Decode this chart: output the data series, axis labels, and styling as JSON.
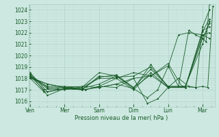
{
  "xlabel": "Pression niveau de la mer( hPa )",
  "bg_color": "#cce8e0",
  "grid_major_color": "#aaccc4",
  "grid_minor_color": "#bbddd5",
  "line_color": "#1a5c2a",
  "ylim": [
    1015.5,
    1024.5
  ],
  "yticks": [
    1016,
    1017,
    1018,
    1019,
    1020,
    1021,
    1022,
    1023,
    1024
  ],
  "xtick_labels": [
    "Ven",
    "Mer",
    "Sam",
    "Dim",
    "Lun",
    "Mar"
  ],
  "xtick_positions": [
    0.0,
    1.0,
    2.0,
    3.0,
    4.0,
    5.0
  ],
  "xlim": [
    -0.05,
    5.35
  ],
  "series": [
    {
      "x": [
        0.0,
        0.5,
        1.0,
        1.5,
        2.0,
        2.5,
        3.0,
        3.5,
        4.0,
        4.3,
        4.6,
        4.8,
        5.0,
        5.1,
        5.2
      ],
      "y": [
        1018.1,
        1017.5,
        1017.2,
        1017.3,
        1017.2,
        1017.5,
        1018.0,
        1018.2,
        1019.1,
        1017.3,
        1022.2,
        1021.8,
        1021.5,
        1021.2,
        1024.5
      ]
    },
    {
      "x": [
        0.0,
        0.4,
        0.8,
        1.2,
        1.6,
        2.0,
        2.5,
        3.0,
        3.4,
        3.7,
        4.0,
        4.3,
        4.6,
        4.8,
        5.0,
        5.15,
        5.3
      ],
      "y": [
        1018.0,
        1016.8,
        1017.0,
        1017.1,
        1017.0,
        1017.3,
        1017.2,
        1018.0,
        1015.8,
        1016.2,
        1017.2,
        1018.0,
        1017.3,
        1017.2,
        1017.3,
        1017.2,
        1024.3
      ]
    },
    {
      "x": [
        0.0,
        0.4,
        0.8,
        1.2,
        1.6,
        2.0,
        2.5,
        3.0,
        3.5,
        4.0,
        4.4,
        4.8,
        5.0,
        5.2
      ],
      "y": [
        1018.2,
        1017.0,
        1017.1,
        1017.2,
        1017.0,
        1017.3,
        1018.0,
        1018.5,
        1018.2,
        1019.3,
        1017.3,
        1017.2,
        1022.5,
        1024.0
      ]
    },
    {
      "x": [
        0.0,
        0.5,
        1.0,
        1.5,
        2.0,
        2.5,
        3.0,
        3.5,
        4.0,
        4.5,
        5.0,
        5.2
      ],
      "y": [
        1018.5,
        1016.8,
        1017.1,
        1017.0,
        1017.2,
        1017.5,
        1017.1,
        1019.2,
        1017.2,
        1017.2,
        1021.8,
        1022.0
      ]
    },
    {
      "x": [
        0.0,
        0.5,
        1.0,
        1.5,
        2.0,
        2.5,
        3.0,
        3.5,
        4.0,
        4.5,
        5.0,
        5.2
      ],
      "y": [
        1018.3,
        1017.2,
        1017.2,
        1017.1,
        1017.5,
        1018.2,
        1017.2,
        1018.8,
        1017.3,
        1017.2,
        1022.2,
        1022.5
      ]
    },
    {
      "x": [
        0.0,
        0.5,
        1.0,
        1.5,
        2.0,
        2.5,
        3.0,
        3.4,
        3.7,
        4.0,
        4.3,
        4.6,
        5.0,
        5.2
      ],
      "y": [
        1018.1,
        1017.3,
        1017.3,
        1017.2,
        1018.5,
        1018.2,
        1017.1,
        1016.3,
        1017.0,
        1019.0,
        1021.8,
        1022.0,
        1021.8,
        1021.5
      ]
    },
    {
      "x": [
        0.0,
        0.5,
        1.0,
        1.5,
        2.0,
        2.5,
        3.0,
        3.5,
        4.0,
        4.5,
        5.0,
        5.2
      ],
      "y": [
        1018.0,
        1017.5,
        1017.2,
        1017.0,
        1018.1,
        1018.3,
        1017.2,
        1018.3,
        1017.2,
        1017.3,
        1021.5,
        1022.8
      ]
    },
    {
      "x": [
        0.0,
        0.5,
        1.0,
        1.5,
        2.0,
        2.5,
        3.0,
        3.5,
        4.0,
        4.5,
        5.0,
        5.2
      ],
      "y": [
        1018.2,
        1017.1,
        1017.0,
        1017.2,
        1018.0,
        1018.0,
        1017.0,
        1018.5,
        1017.2,
        1017.2,
        1022.1,
        1023.2
      ]
    },
    {
      "x": [
        0.0,
        0.5,
        1.0,
        1.5,
        2.0,
        2.5,
        3.0,
        3.5,
        4.0,
        4.5,
        5.0,
        5.2
      ],
      "y": [
        1018.4,
        1016.5,
        1017.1,
        1017.0,
        1018.2,
        1018.1,
        1018.2,
        1019.0,
        1017.3,
        1017.3,
        1021.0,
        1023.0
      ]
    }
  ]
}
